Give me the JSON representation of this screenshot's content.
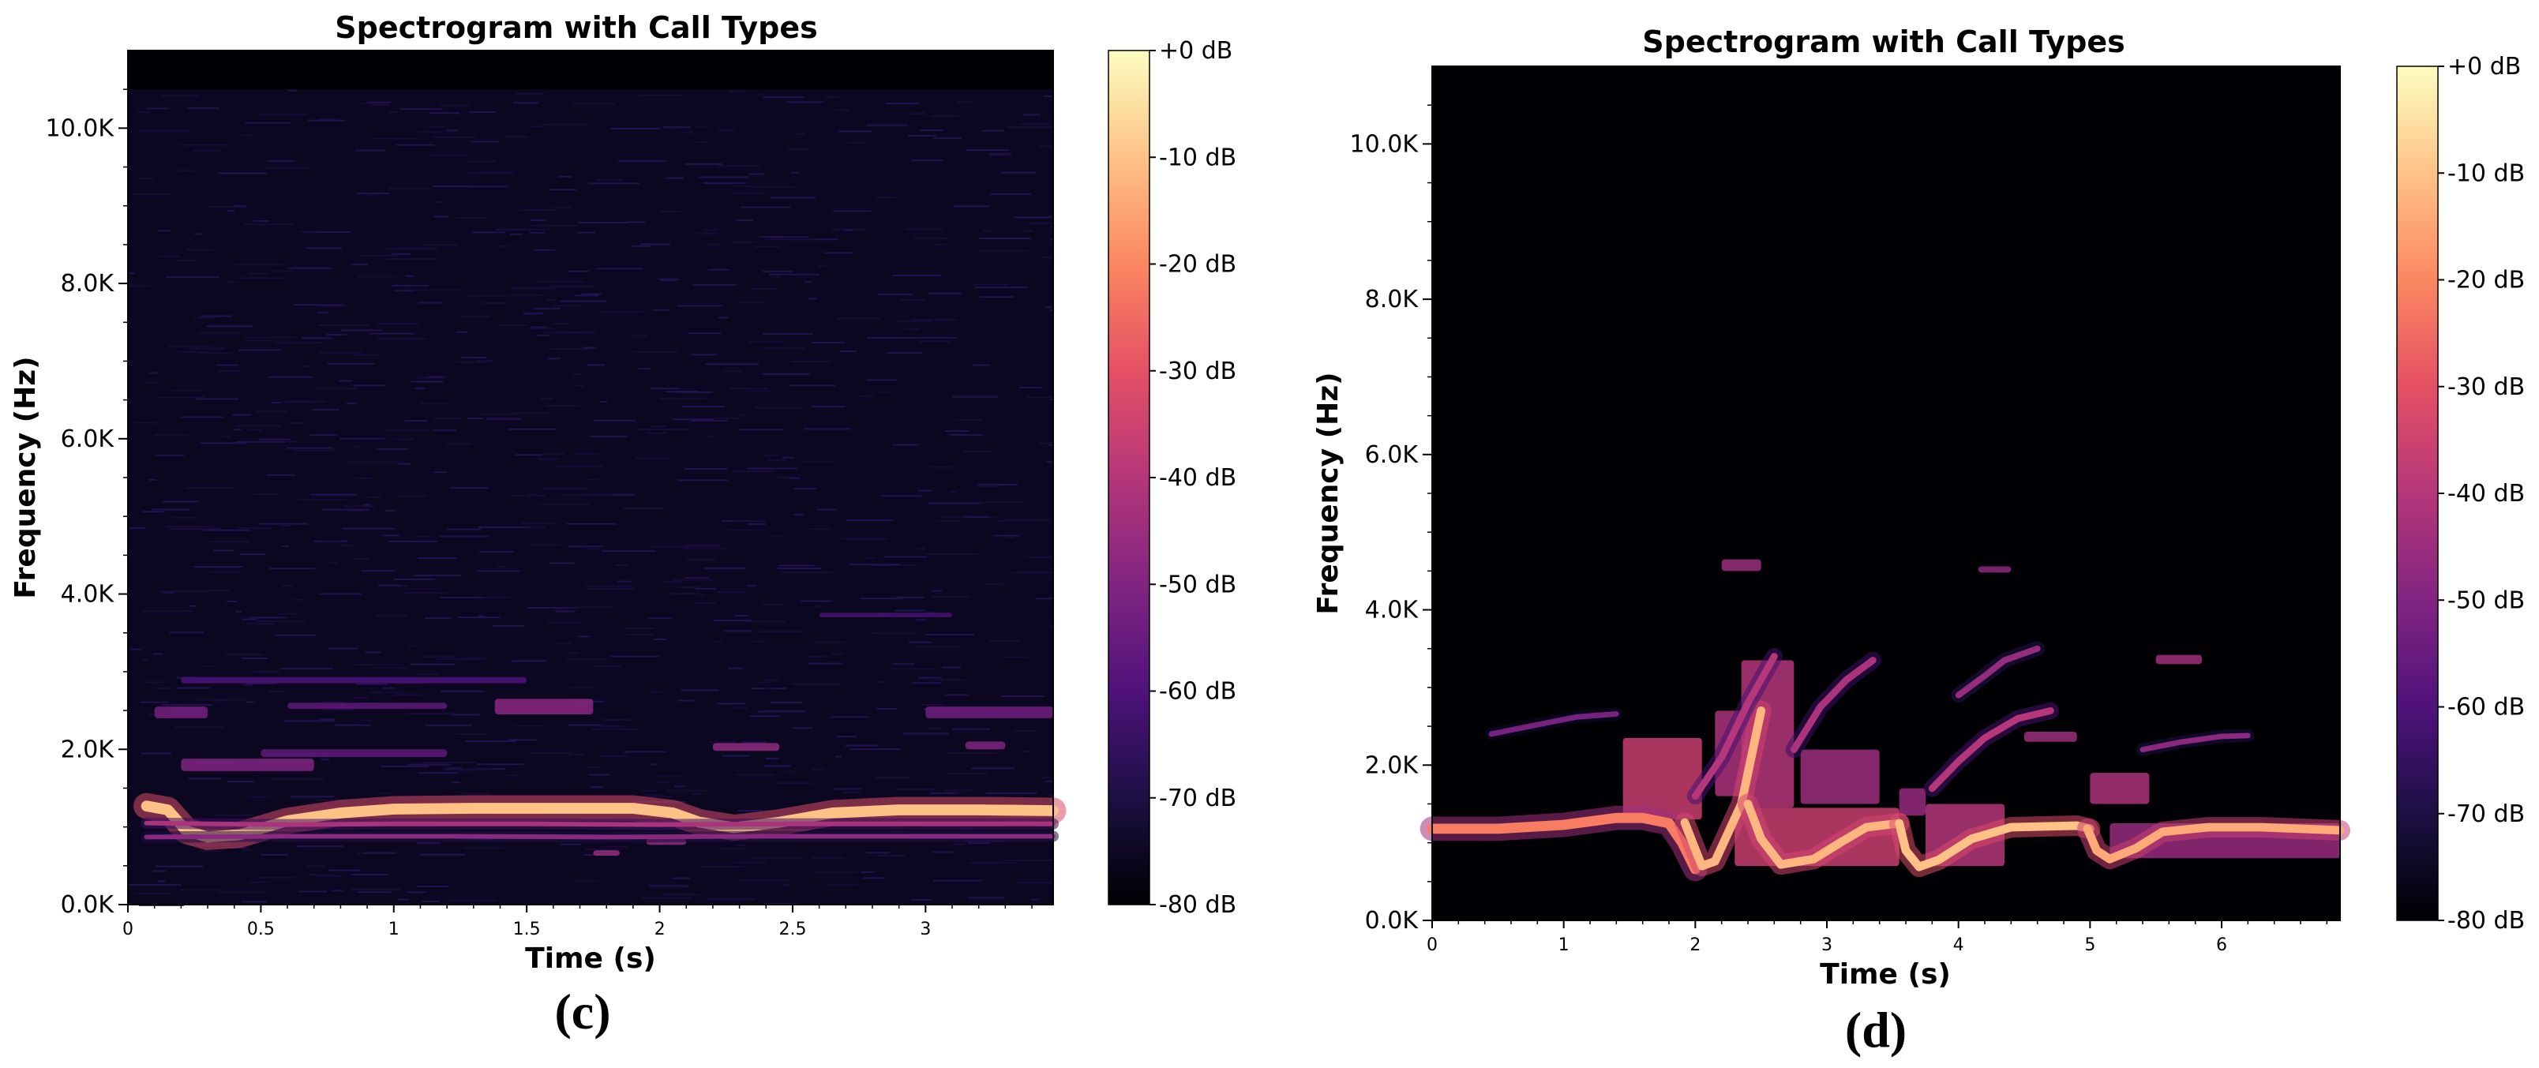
{
  "chart_data": [
    {
      "type": "heatmap",
      "panel_label": "(c)",
      "title": "Spectrogram with Call Types",
      "xlabel": "Time (s)",
      "ylabel": "Frequency (Hz)",
      "xlim": [
        0,
        3.48
      ],
      "ylim": [
        0,
        11000
      ],
      "x_ticks": [
        {
          "value": 0,
          "label": "0"
        },
        {
          "value": 0.5,
          "label": "0.5"
        },
        {
          "value": 1,
          "label": "1"
        },
        {
          "value": 1.5,
          "label": "1.5"
        },
        {
          "value": 2,
          "label": "2"
        },
        {
          "value": 2.5,
          "label": "2.5"
        },
        {
          "value": 3,
          "label": "3"
        }
      ],
      "y_ticks": [
        {
          "value": 0,
          "label": "0.0K"
        },
        {
          "value": 2000,
          "label": "2.0K"
        },
        {
          "value": 4000,
          "label": "4.0K"
        },
        {
          "value": 6000,
          "label": "6.0K"
        },
        {
          "value": 8000,
          "label": "8.0K"
        },
        {
          "value": 10000,
          "label": "10.0K"
        }
      ],
      "noise_floor_freq_max": 10500,
      "colorbar": {
        "colormap": "magma",
        "range_db": [
          -80,
          0
        ],
        "labels": [
          "+0 dB",
          "-10 dB",
          "-20 dB",
          "-30 dB",
          "-40 dB",
          "-50 dB",
          "-60 dB",
          "-70 dB",
          "-80 dB"
        ]
      },
      "contours": [
        {
          "name": "",
          "level_db": -10,
          "width_hz": 140,
          "points": [
            [
              0.07,
              1270
            ],
            [
              0.15,
              1220
            ],
            [
              0.22,
              950
            ],
            [
              0.3,
              870
            ],
            [
              0.42,
              900
            ],
            [
              0.6,
              1080
            ],
            [
              0.8,
              1180
            ],
            [
              1.0,
              1230
            ],
            [
              1.3,
              1240
            ],
            [
              1.6,
              1240
            ],
            [
              1.9,
              1240
            ],
            [
              2.05,
              1180
            ],
            [
              2.15,
              1060
            ],
            [
              2.28,
              990
            ],
            [
              2.45,
              1060
            ],
            [
              2.65,
              1180
            ],
            [
              2.9,
              1220
            ],
            [
              3.2,
              1220
            ],
            [
              3.48,
              1210
            ]
          ]
        },
        {
          "name": "",
          "level_db": -42,
          "width_hz": 60,
          "points": [
            [
              0.07,
              1050
            ],
            [
              0.3,
              1040
            ],
            [
              0.6,
              1030
            ],
            [
              1.0,
              1040
            ],
            [
              1.5,
              1040
            ],
            [
              2.0,
              1030
            ],
            [
              2.5,
              1040
            ],
            [
              3.0,
              1040
            ],
            [
              3.48,
              1040
            ]
          ]
        },
        {
          "name": "",
          "level_db": -48,
          "width_hz": 60,
          "points": [
            [
              0.07,
              870
            ],
            [
              0.6,
              880
            ],
            [
              1.2,
              880
            ],
            [
              1.8,
              870
            ],
            [
              2.4,
              880
            ],
            [
              3.0,
              880
            ],
            [
              3.48,
              880
            ]
          ]
        }
      ],
      "blobs": [
        {
          "x": [
            0.1,
            0.3
          ],
          "y": [
            2400,
            2550
          ],
          "level_db": -52
        },
        {
          "x": [
            0.2,
            0.7
          ],
          "y": [
            1720,
            1880
          ],
          "level_db": -50
        },
        {
          "x": [
            0.5,
            1.2
          ],
          "y": [
            1900,
            2000
          ],
          "level_db": -56
        },
        {
          "x": [
            0.6,
            1.2
          ],
          "y": [
            2520,
            2600
          ],
          "level_db": -57
        },
        {
          "x": [
            0.2,
            1.5
          ],
          "y": [
            2850,
            2930
          ],
          "level_db": -60
        },
        {
          "x": [
            1.38,
            1.75
          ],
          "y": [
            2450,
            2650
          ],
          "level_db": -48
        },
        {
          "x": [
            1.75,
            1.85
          ],
          "y": [
            630,
            700
          ],
          "level_db": -46
        },
        {
          "x": [
            1.95,
            2.1
          ],
          "y": [
            770,
            850
          ],
          "level_db": -47
        },
        {
          "x": [
            2.2,
            2.45
          ],
          "y": [
            1980,
            2080
          ],
          "level_db": -47
        },
        {
          "x": [
            3.0,
            3.48
          ],
          "y": [
            2400,
            2550
          ],
          "level_db": -53
        },
        {
          "x": [
            3.15,
            3.3
          ],
          "y": [
            2000,
            2100
          ],
          "level_db": -50
        },
        {
          "x": [
            2.6,
            3.1
          ],
          "y": [
            3700,
            3760
          ],
          "level_db": -62
        }
      ]
    },
    {
      "type": "heatmap",
      "panel_label": "(d)",
      "title": "Spectrogram with Call Types",
      "xlabel": "Time (s)",
      "ylabel": "Frequency (Hz)",
      "xlim": [
        0,
        6.9
      ],
      "ylim": [
        0,
        11000
      ],
      "x_ticks": [
        {
          "value": 0,
          "label": "0"
        },
        {
          "value": 1,
          "label": "1"
        },
        {
          "value": 2,
          "label": "2"
        },
        {
          "value": 3,
          "label": "3"
        },
        {
          "value": 4,
          "label": "4"
        },
        {
          "value": 5,
          "label": "5"
        },
        {
          "value": 6,
          "label": "6"
        }
      ],
      "y_ticks": [
        {
          "value": 0,
          "label": "0.0K"
        },
        {
          "value": 2000,
          "label": "2.0K"
        },
        {
          "value": 4000,
          "label": "4.0K"
        },
        {
          "value": 6000,
          "label": "6.0K"
        },
        {
          "value": 8000,
          "label": "8.0K"
        },
        {
          "value": 10000,
          "label": "10.0K"
        }
      ],
      "colorbar": {
        "colormap": "magma",
        "range_db": [
          -80,
          0
        ],
        "labels": [
          "+0 dB",
          "-10 dB",
          "-20 dB",
          "-30 dB",
          "-40 dB",
          "-50 dB",
          "-60 dB",
          "-70 dB",
          "-80 dB"
        ]
      },
      "contours": [
        {
          "name": "",
          "level_db": -22,
          "width_hz": 130,
          "points": [
            [
              0,
              1180
            ],
            [
              0.5,
              1180
            ],
            [
              1.0,
              1230
            ],
            [
              1.4,
              1320
            ],
            [
              1.6,
              1320
            ],
            [
              1.8,
              1250
            ],
            [
              1.9,
              1000
            ],
            [
              2.0,
              660
            ]
          ]
        },
        {
          "name": "",
          "level_db": -12,
          "width_hz": 110,
          "points": [
            [
              1.92,
              1260
            ],
            [
              1.98,
              1000
            ],
            [
              2.05,
              700
            ],
            [
              2.15,
              760
            ],
            [
              2.35,
              1500
            ],
            [
              2.5,
              2700
            ]
          ]
        },
        {
          "name": "",
          "level_db": -12,
          "width_hz": 110,
          "points": [
            [
              2.4,
              1500
            ],
            [
              2.5,
              1050
            ],
            [
              2.65,
              720
            ],
            [
              2.9,
              790
            ],
            [
              3.1,
              1000
            ],
            [
              3.3,
              1200
            ],
            [
              3.55,
              1250
            ]
          ]
        },
        {
          "name": "",
          "level_db": -10,
          "width_hz": 110,
          "points": [
            [
              3.55,
              1250
            ],
            [
              3.6,
              900
            ],
            [
              3.7,
              690
            ],
            [
              3.85,
              780
            ],
            [
              4.1,
              1050
            ],
            [
              4.4,
              1200
            ],
            [
              4.9,
              1220
            ],
            [
              5.0,
              1180
            ]
          ]
        },
        {
          "name": "",
          "level_db": -14,
          "width_hz": 110,
          "points": [
            [
              4.98,
              1180
            ],
            [
              5.05,
              900
            ],
            [
              5.15,
              790
            ],
            [
              5.35,
              930
            ],
            [
              5.55,
              1140
            ],
            [
              5.9,
              1200
            ],
            [
              6.3,
              1200
            ],
            [
              6.9,
              1160
            ]
          ]
        },
        {
          "name": "",
          "level_db": -40,
          "width_hz": 90,
          "points": [
            [
              2.0,
              1600
            ],
            [
              2.2,
              2100
            ],
            [
              2.4,
              2800
            ],
            [
              2.6,
              3400
            ]
          ]
        },
        {
          "name": "",
          "level_db": -42,
          "width_hz": 90,
          "points": [
            [
              2.75,
              2200
            ],
            [
              2.95,
              2750
            ],
            [
              3.15,
              3100
            ],
            [
              3.35,
              3350
            ]
          ]
        },
        {
          "name": "",
          "level_db": -40,
          "width_hz": 90,
          "points": [
            [
              3.8,
              1700
            ],
            [
              4.0,
              2050
            ],
            [
              4.2,
              2350
            ],
            [
              4.45,
              2600
            ],
            [
              4.7,
              2700
            ]
          ]
        },
        {
          "name": "",
          "level_db": -46,
          "width_hz": 80,
          "points": [
            [
              4.0,
              2900
            ],
            [
              4.2,
              3150
            ],
            [
              4.35,
              3350
            ],
            [
              4.6,
              3500
            ]
          ]
        },
        {
          "name": "",
          "level_db": -48,
          "width_hz": 70,
          "points": [
            [
              5.4,
              2200
            ],
            [
              5.7,
              2300
            ],
            [
              6.0,
              2370
            ],
            [
              6.2,
              2380
            ]
          ]
        },
        {
          "name": "",
          "level_db": -52,
          "width_hz": 70,
          "points": [
            [
              0.45,
              2400
            ],
            [
              0.8,
              2520
            ],
            [
              1.1,
              2620
            ],
            [
              1.4,
              2660
            ]
          ]
        }
      ],
      "blobs": [
        {
          "x": [
            1.45,
            2.05
          ],
          "y": [
            1300,
            2350
          ],
          "level_db": -36
        },
        {
          "x": [
            2.3,
            3.55
          ],
          "y": [
            700,
            1450
          ],
          "level_db": -36
        },
        {
          "x": [
            2.35,
            2.75
          ],
          "y": [
            1450,
            3350
          ],
          "level_db": -40
        },
        {
          "x": [
            2.15,
            2.4
          ],
          "y": [
            1600,
            2700
          ],
          "level_db": -42
        },
        {
          "x": [
            2.8,
            3.4
          ],
          "y": [
            1500,
            2200
          ],
          "level_db": -45
        },
        {
          "x": [
            3.75,
            4.35
          ],
          "y": [
            700,
            1500
          ],
          "level_db": -40
        },
        {
          "x": [
            3.55,
            3.75
          ],
          "y": [
            1350,
            1700
          ],
          "level_db": -46
        },
        {
          "x": [
            5.0,
            5.45
          ],
          "y": [
            1500,
            1900
          ],
          "level_db": -42
        },
        {
          "x": [
            5.15,
            6.9
          ],
          "y": [
            800,
            1250
          ],
          "level_db": -46
        },
        {
          "x": [
            2.2,
            2.5
          ],
          "y": [
            4500,
            4650
          ],
          "level_db": -45
        },
        {
          "x": [
            4.15,
            4.4
          ],
          "y": [
            4480,
            4560
          ],
          "level_db": -48
        },
        {
          "x": [
            5.5,
            5.85
          ],
          "y": [
            3300,
            3420
          ],
          "level_db": -44
        },
        {
          "x": [
            4.5,
            4.9
          ],
          "y": [
            2300,
            2430
          ],
          "level_db": -45
        }
      ]
    }
  ]
}
